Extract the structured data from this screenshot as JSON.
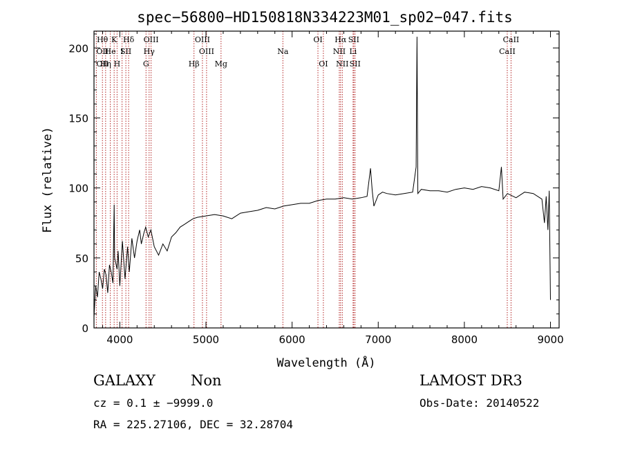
{
  "chart_data": {
    "type": "line",
    "title": "spec−56800−HD150818N334223M01_sp02−047.fits",
    "xlabel": "Wavelength (Å)",
    "ylabel": "Flux (relative)",
    "xlim": [
      3700,
      9100
    ],
    "ylim": [
      0,
      212
    ],
    "x_ticks": [
      4000,
      5000,
      6000,
      7000,
      8000,
      9000
    ],
    "x_tick_labels": [
      "4000",
      "5000",
      "6000",
      "7000",
      "8000",
      "9000"
    ],
    "y_ticks": [
      0,
      50,
      100,
      150,
      200
    ],
    "y_tick_labels": [
      "0",
      "50",
      "100",
      "150",
      "200"
    ],
    "grid": false,
    "series": [
      {
        "name": "spectrum",
        "x": [
          3700,
          3720,
          3740,
          3760,
          3780,
          3800,
          3820,
          3840,
          3860,
          3880,
          3900,
          3920,
          3934,
          3940,
          3968,
          3980,
          4000,
          4030,
          4060,
          4090,
          4110,
          4140,
          4170,
          4200,
          4230,
          4250,
          4280,
          4300,
          4330,
          4360,
          4400,
          4450,
          4500,
          4550,
          4600,
          4650,
          4700,
          4750,
          4800,
          4850,
          4900,
          5000,
          5100,
          5200,
          5300,
          5400,
          5500,
          5600,
          5700,
          5800,
          5900,
          6000,
          6100,
          6200,
          6300,
          6400,
          6500,
          6600,
          6700,
          6800,
          6870,
          6910,
          6930,
          6950,
          7000,
          7050,
          7100,
          7200,
          7300,
          7400,
          7440,
          7450,
          7460,
          7500,
          7600,
          7700,
          7800,
          7900,
          8000,
          8100,
          8200,
          8300,
          8400,
          8430,
          8450,
          8500,
          8600,
          8700,
          8800,
          8900,
          8930,
          8950,
          8970,
          8985,
          9000
        ],
        "y": [
          8,
          30,
          22,
          40,
          35,
          28,
          42,
          38,
          25,
          45,
          40,
          32,
          88,
          50,
          42,
          55,
          30,
          62,
          35,
          58,
          40,
          64,
          50,
          62,
          70,
          60,
          68,
          72,
          65,
          70,
          58,
          52,
          60,
          55,
          65,
          68,
          72,
          74,
          76,
          78,
          79,
          80,
          81,
          80,
          78,
          82,
          83,
          84,
          86,
          85,
          87,
          88,
          89,
          89,
          91,
          92,
          92,
          93,
          92,
          93,
          94,
          114,
          98,
          87,
          95,
          97,
          96,
          95,
          96,
          97,
          115,
          208,
          96,
          99,
          98,
          98,
          97,
          99,
          100,
          99,
          101,
          100,
          98,
          115,
          92,
          96,
          93,
          97,
          96,
          92,
          75,
          94,
          70,
          98,
          20
        ]
      }
    ],
    "lines": [
      {
        "label": "OII",
        "wavelength": 3727,
        "row": 2
      },
      {
        "label": "OII",
        "wavelength": 3727,
        "row": 3
      },
      {
        "label": "Hθ",
        "wavelength": 3798,
        "row": 1
      },
      {
        "label": "He",
        "wavelength": 3889,
        "row": 2
      },
      {
        "label": "Hη",
        "wavelength": 3835,
        "row": 3
      },
      {
        "label": "K",
        "wavelength": 3934,
        "row": 1
      },
      {
        "label": "I",
        "wavelength": 4026,
        "row": 2
      },
      {
        "label": "H",
        "wavelength": 3968,
        "row": 3
      },
      {
        "label": "SII",
        "wavelength": 4070,
        "row": 2
      },
      {
        "label": "Hδ",
        "wavelength": 4102,
        "row": 1
      },
      {
        "label": "OIII",
        "wavelength": 4363,
        "row": 1
      },
      {
        "label": "Hγ",
        "wavelength": 4340,
        "row": 2
      },
      {
        "label": "G",
        "wavelength": 4304,
        "row": 3
      },
      {
        "label": "OIII",
        "wavelength": 4959,
        "row": 1
      },
      {
        "label": "OIII",
        "wavelength": 5007,
        "row": 2
      },
      {
        "label": "Hβ",
        "wavelength": 4861,
        "row": 3
      },
      {
        "label": "Mg",
        "wavelength": 5175,
        "row": 3
      },
      {
        "label": "Na",
        "wavelength": 5893,
        "row": 2
      },
      {
        "label": "OI",
        "wavelength": 6300,
        "row": 1
      },
      {
        "label": "OI",
        "wavelength": 6363,
        "row": 3
      },
      {
        "label": "Hα",
        "wavelength": 6563,
        "row": 1
      },
      {
        "label": "SII",
        "wavelength": 6716,
        "row": 1
      },
      {
        "label": "NII",
        "wavelength": 6548,
        "row": 2
      },
      {
        "label": "Li",
        "wavelength": 6708,
        "row": 2
      },
      {
        "label": "NII",
        "wavelength": 6583,
        "row": 3
      },
      {
        "label": "SII",
        "wavelength": 6731,
        "row": 3
      },
      {
        "label": "CaII",
        "wavelength": 8542,
        "row": 1
      },
      {
        "label": "CaII",
        "wavelength": 8498,
        "row": 2
      }
    ],
    "marker_wavelengths": [
      3727,
      3798,
      3835,
      3889,
      3934,
      3968,
      4026,
      4070,
      4102,
      4304,
      4340,
      4363,
      4861,
      4959,
      5007,
      5175,
      5893,
      6300,
      6363,
      6548,
      6563,
      6583,
      6708,
      6716,
      6731,
      8498,
      8542
    ],
    "colors": {
      "line": "#000000",
      "marker": "#b22222",
      "axis": "#000000"
    }
  },
  "info": {
    "classification": "GALAXY",
    "subclass": "Non",
    "survey": "LAMOST DR3",
    "redshift": "cz = 0.1 ± −9999.0",
    "obs_date": "Obs-Date: 20140522",
    "coords": "RA = 225.27106, DEC =  32.28704"
  }
}
